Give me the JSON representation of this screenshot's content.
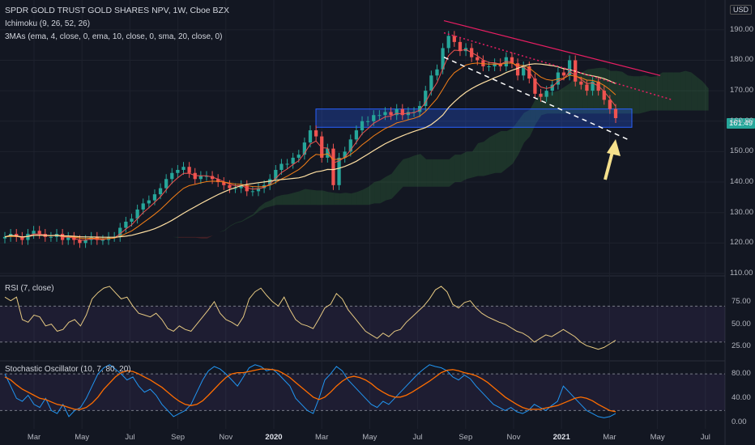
{
  "header": {
    "title": "SPDR GOLD TRUST GOLD SHARES NPV, 1W, Cboe BZX",
    "indicator_1": "Ichimoku (9, 26, 52, 26)",
    "indicator_2": "3MAs (ema, 4, close, 0, ema, 10, close, 0, sma, 20, close, 0)",
    "currency": "USD"
  },
  "price_tag": "161.49",
  "colors": {
    "up": "#26a69a",
    "down": "#ef5350",
    "ma_fast": "#f57f17",
    "ma_slow": "#ffe0a3",
    "zone": "#2962ff",
    "arrow": "#f5e08c",
    "trend": "#e91e63"
  },
  "chart_data": [
    {
      "type": "candlestick",
      "title": "SPDR GOLD TRUST GOLD SHARES NPV, 1W, Cboe BZX",
      "y_ticks": [
        110,
        120,
        130,
        140,
        150,
        160,
        170,
        180,
        190
      ],
      "y_tick_labels": [
        "110.00",
        "120.00",
        "130.00",
        "140.00",
        "150.00",
        "160.00",
        "170.00",
        "180.00",
        "190.00"
      ],
      "ylim": [
        110,
        195
      ],
      "x_tick_labels": [
        "Mar",
        "May",
        "Jul",
        "Sep",
        "Nov",
        "2020",
        "Mar",
        "May",
        "Jul",
        "Sep",
        "Nov",
        "2021",
        "Mar",
        "May",
        "Jul"
      ],
      "x_tick_bold": [
        false,
        false,
        false,
        false,
        false,
        true,
        false,
        false,
        false,
        false,
        false,
        true,
        false,
        false,
        false
      ],
      "close_series": [
        122,
        123,
        122,
        121,
        123,
        124,
        123,
        122,
        122,
        123,
        121,
        122,
        121,
        120,
        121,
        122,
        121,
        121,
        122,
        122,
        125,
        127,
        128,
        131,
        133,
        134,
        136,
        138,
        141,
        143,
        144,
        145,
        143,
        141,
        142,
        142,
        141,
        140,
        139,
        138,
        138,
        139,
        137,
        137,
        138,
        139,
        141,
        144,
        146,
        146,
        148,
        149,
        153,
        157,
        155,
        148,
        151,
        139,
        148,
        150,
        154,
        157,
        160,
        160,
        162,
        162,
        163,
        162,
        164,
        162,
        163,
        163,
        165,
        170,
        175,
        177,
        184,
        188,
        186,
        183,
        184,
        181,
        180,
        178,
        178,
        179,
        178,
        181,
        179,
        175,
        178,
        174,
        169,
        168,
        170,
        172,
        176,
        175,
        180,
        173,
        172,
        170,
        173,
        170,
        167,
        164,
        161
      ],
      "current_price": 161.49,
      "support_zone": [
        158,
        164
      ]
    },
    {
      "type": "line",
      "title": "RSI (7, close)",
      "y_ticks": [
        25,
        50,
        75
      ],
      "y_tick_labels": [
        "25.00",
        "50.00",
        "75.00"
      ],
      "ylim": [
        10,
        100
      ],
      "levels": [
        30,
        70
      ],
      "values": [
        80,
        76,
        80,
        55,
        52,
        60,
        58,
        48,
        50,
        42,
        44,
        52,
        55,
        48,
        60,
        78,
        85,
        90,
        92,
        85,
        78,
        80,
        70,
        62,
        60,
        58,
        62,
        55,
        45,
        42,
        48,
        44,
        42,
        50,
        58,
        66,
        75,
        62,
        55,
        52,
        48,
        58,
        78,
        86,
        90,
        82,
        75,
        70,
        80,
        66,
        55,
        50,
        48,
        45,
        56,
        68,
        72,
        84,
        78,
        66,
        58,
        50,
        42,
        38,
        34,
        40,
        36,
        42,
        44,
        52,
        58,
        64,
        70,
        78,
        88,
        92,
        86,
        72,
        68,
        74,
        76,
        68,
        62,
        58,
        55,
        52,
        50,
        46,
        42,
        40,
        36,
        30,
        34,
        38,
        36,
        40,
        44,
        40,
        36,
        30,
        26,
        24,
        22,
        24,
        28,
        32
      ]
    },
    {
      "type": "line",
      "title": "Stochastic Oscillator (10, 7, 80, 20)",
      "y_ticks": [
        0,
        40,
        80
      ],
      "y_tick_labels": [
        "0.00",
        "40.00",
        "80.00"
      ],
      "ylim": [
        -10,
        100
      ],
      "levels": [
        20,
        80
      ],
      "series": [
        {
          "values": [
            80,
            60,
            40,
            35,
            45,
            30,
            25,
            40,
            20,
            15,
            30,
            10,
            20,
            25,
            40,
            60,
            80,
            90,
            95,
            88,
            80,
            70,
            75,
            60,
            50,
            55,
            45,
            30,
            20,
            10,
            15,
            20,
            30,
            50,
            70,
            85,
            92,
            88,
            80,
            70,
            60,
            75,
            90,
            95,
            92,
            85,
            88,
            80,
            70,
            60,
            40,
            30,
            20,
            15,
            40,
            70,
            80,
            92,
            85,
            70,
            60,
            50,
            40,
            30,
            25,
            35,
            30,
            40,
            50,
            60,
            70,
            80,
            88,
            95,
            92,
            90,
            85,
            75,
            70,
            78,
            72,
            60,
            50,
            40,
            30,
            25,
            20,
            25,
            18,
            15,
            20,
            30,
            25,
            20,
            28,
            35,
            60,
            50,
            40,
            30,
            20,
            15,
            10,
            8,
            10,
            15
          ]
        },
        {
          "values": [
            75,
            70,
            62,
            55,
            50,
            45,
            40,
            38,
            34,
            30,
            28,
            25,
            22,
            22,
            25,
            32,
            42,
            55,
            65,
            75,
            82,
            85,
            84,
            80,
            75,
            70,
            64,
            58,
            50,
            42,
            35,
            30,
            28,
            30,
            36,
            45,
            55,
            65,
            74,
            80,
            82,
            82,
            84,
            86,
            88,
            88,
            87,
            85,
            80,
            74,
            66,
            58,
            50,
            42,
            38,
            42,
            50,
            60,
            68,
            74,
            76,
            74,
            70,
            64,
            56,
            50,
            45,
            42,
            42,
            45,
            50,
            56,
            62,
            68,
            75,
            82,
            86,
            87,
            85,
            82,
            80,
            77,
            72,
            66,
            58,
            50,
            42,
            36,
            30,
            25,
            22,
            22,
            22,
            24,
            26,
            28,
            32,
            36,
            40,
            42,
            40,
            36,
            30,
            25,
            20,
            18
          ]
        }
      ]
    }
  ]
}
